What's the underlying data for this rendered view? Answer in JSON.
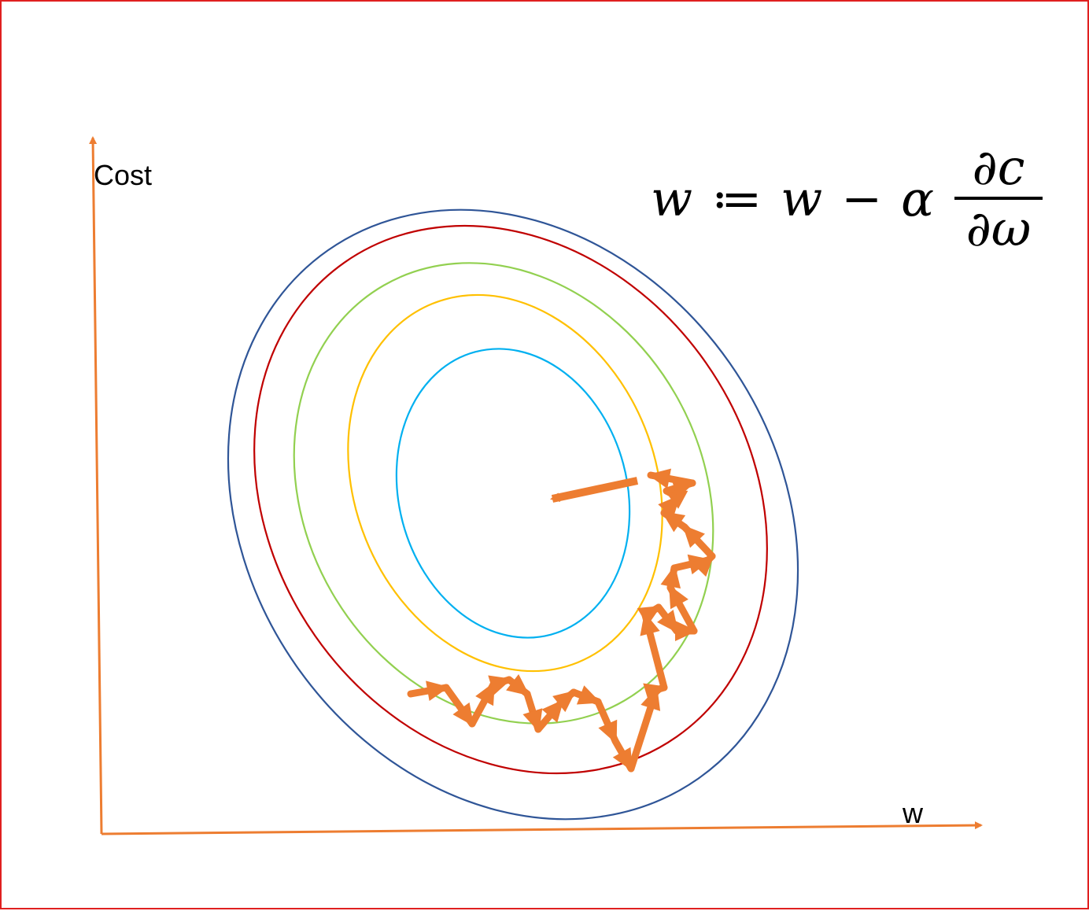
{
  "axes": {
    "y_label": "Cost",
    "x_label": "w",
    "color": "#ed7d31"
  },
  "formula": {
    "lhs": "w",
    "assign": "≔",
    "term": "w",
    "minus": "−",
    "rate": "α",
    "numerator": "∂c",
    "denominator": "∂ω"
  },
  "contours": {
    "colors": [
      "#2f5597",
      "#c00000",
      "#92d050",
      "#ffc000",
      "#00b0f0"
    ]
  },
  "path": {
    "color": "#ed7d31"
  },
  "frame_color": "#e02020"
}
